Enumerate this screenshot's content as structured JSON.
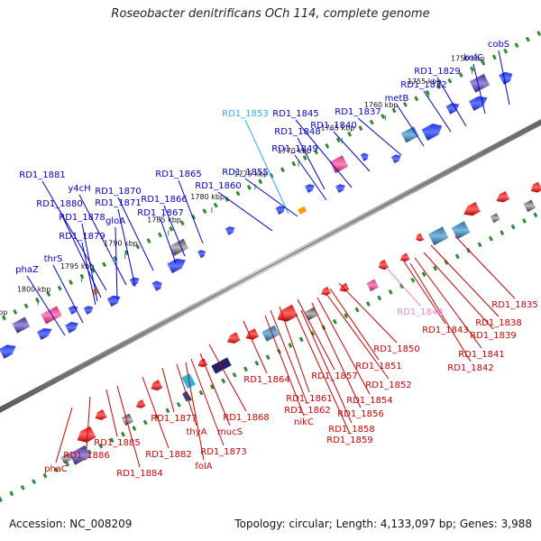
{
  "title": "Roseobacter denitrificans OCh 114, complete genome",
  "footer": {
    "accession": "Accession: NC_008209",
    "summary": "Topology: circular; Length: 4,133,097 bp; Genes: 3,988"
  },
  "colors": {
    "forward_label": "#0000cc",
    "reverse_label": "#cc0000",
    "highlight_label": "#33aaee",
    "pink_label": "#ee88cc"
  },
  "ticks": [
    "1750 kbp",
    "1755 kbp",
    "1760 kbp",
    "1765 kbp",
    "1770 kbp",
    "1775 kbp",
    "1780 kbp",
    "1785 kbp",
    "1790 kbp",
    "1795 kbp",
    "1800 kbp",
    "1805 kbp"
  ],
  "forward_labels": [
    "cobS",
    "kefC",
    "RD1_1829",
    "RD1_1832",
    "metB",
    "RD1_1837",
    "RD1_1840",
    "RD1_1845",
    "RD1_1853",
    "RD1_1848",
    "RD1_1849",
    "RD1_1855",
    "RD1_1860",
    "RD1_1865",
    "RD1_1866",
    "RD1_1867",
    "RD1_1870",
    "y4cH",
    "RD1_1871",
    "gloA",
    "RD1_1881",
    "RD1_1880",
    "RD1_1878",
    "RD1_1879",
    "thrS",
    "phaZ"
  ],
  "reverse_labels": [
    "RD1_1835",
    "RD1_1838",
    "RD1_1839",
    "RD1_1841",
    "RD1_1842",
    "RD1_1843",
    "RD1_1844",
    "RD1_1850",
    "RD1_1851",
    "RD1_1852",
    "RD1_1854",
    "RD1_1856",
    "RD1_1857",
    "RD1_1858",
    "RD1_1859",
    "RD1_1861",
    "RD1_1862",
    "nikC",
    "RD1_1864",
    "RD1_1868",
    "mucS",
    "RD1_1873",
    "folA",
    "thyA",
    "RD1_1877",
    "RD1_1882",
    "RD1_1884",
    "RD1_1885",
    "RD1_1886",
    "phaC"
  ]
}
